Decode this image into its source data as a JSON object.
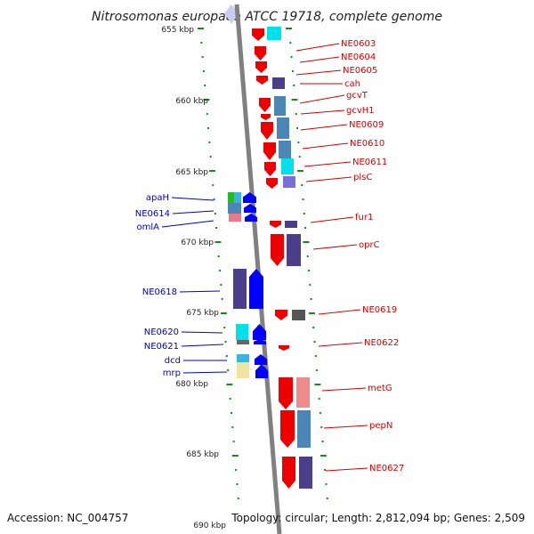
{
  "title": "Nitrosomonas europaea ATCC 19718, complete genome",
  "footer": {
    "accession": "Accession: NC_004757",
    "topology": "Topology: circular; Length: 2,812,094 bp; Genes: 2,509"
  },
  "colors": {
    "backbone": "#808080",
    "tick": "#1a8a1a",
    "right_label": "#d40000",
    "left_label": "#0000cc"
  },
  "kbp_labels": [
    "655 kbp",
    "660 kbp",
    "665 kbp",
    "670 kbp",
    "675 kbp",
    "680 kbp",
    "685 kbp",
    "690 kbp"
  ],
  "genes_right": [
    "NE0603",
    "NE0604",
    "NE0605",
    "cah",
    "gcvT",
    "gcvH1",
    "NE0609",
    "NE0610",
    "NE0611",
    "plsC",
    "fur1",
    "oprC",
    "NE0619",
    "NE0622",
    "metG",
    "pepN",
    "NE0627"
  ],
  "genes_left": [
    "apaH",
    "NE0614",
    "omlA",
    "NE0618",
    "NE0620",
    "NE0621",
    "dcd",
    "mrp"
  ]
}
